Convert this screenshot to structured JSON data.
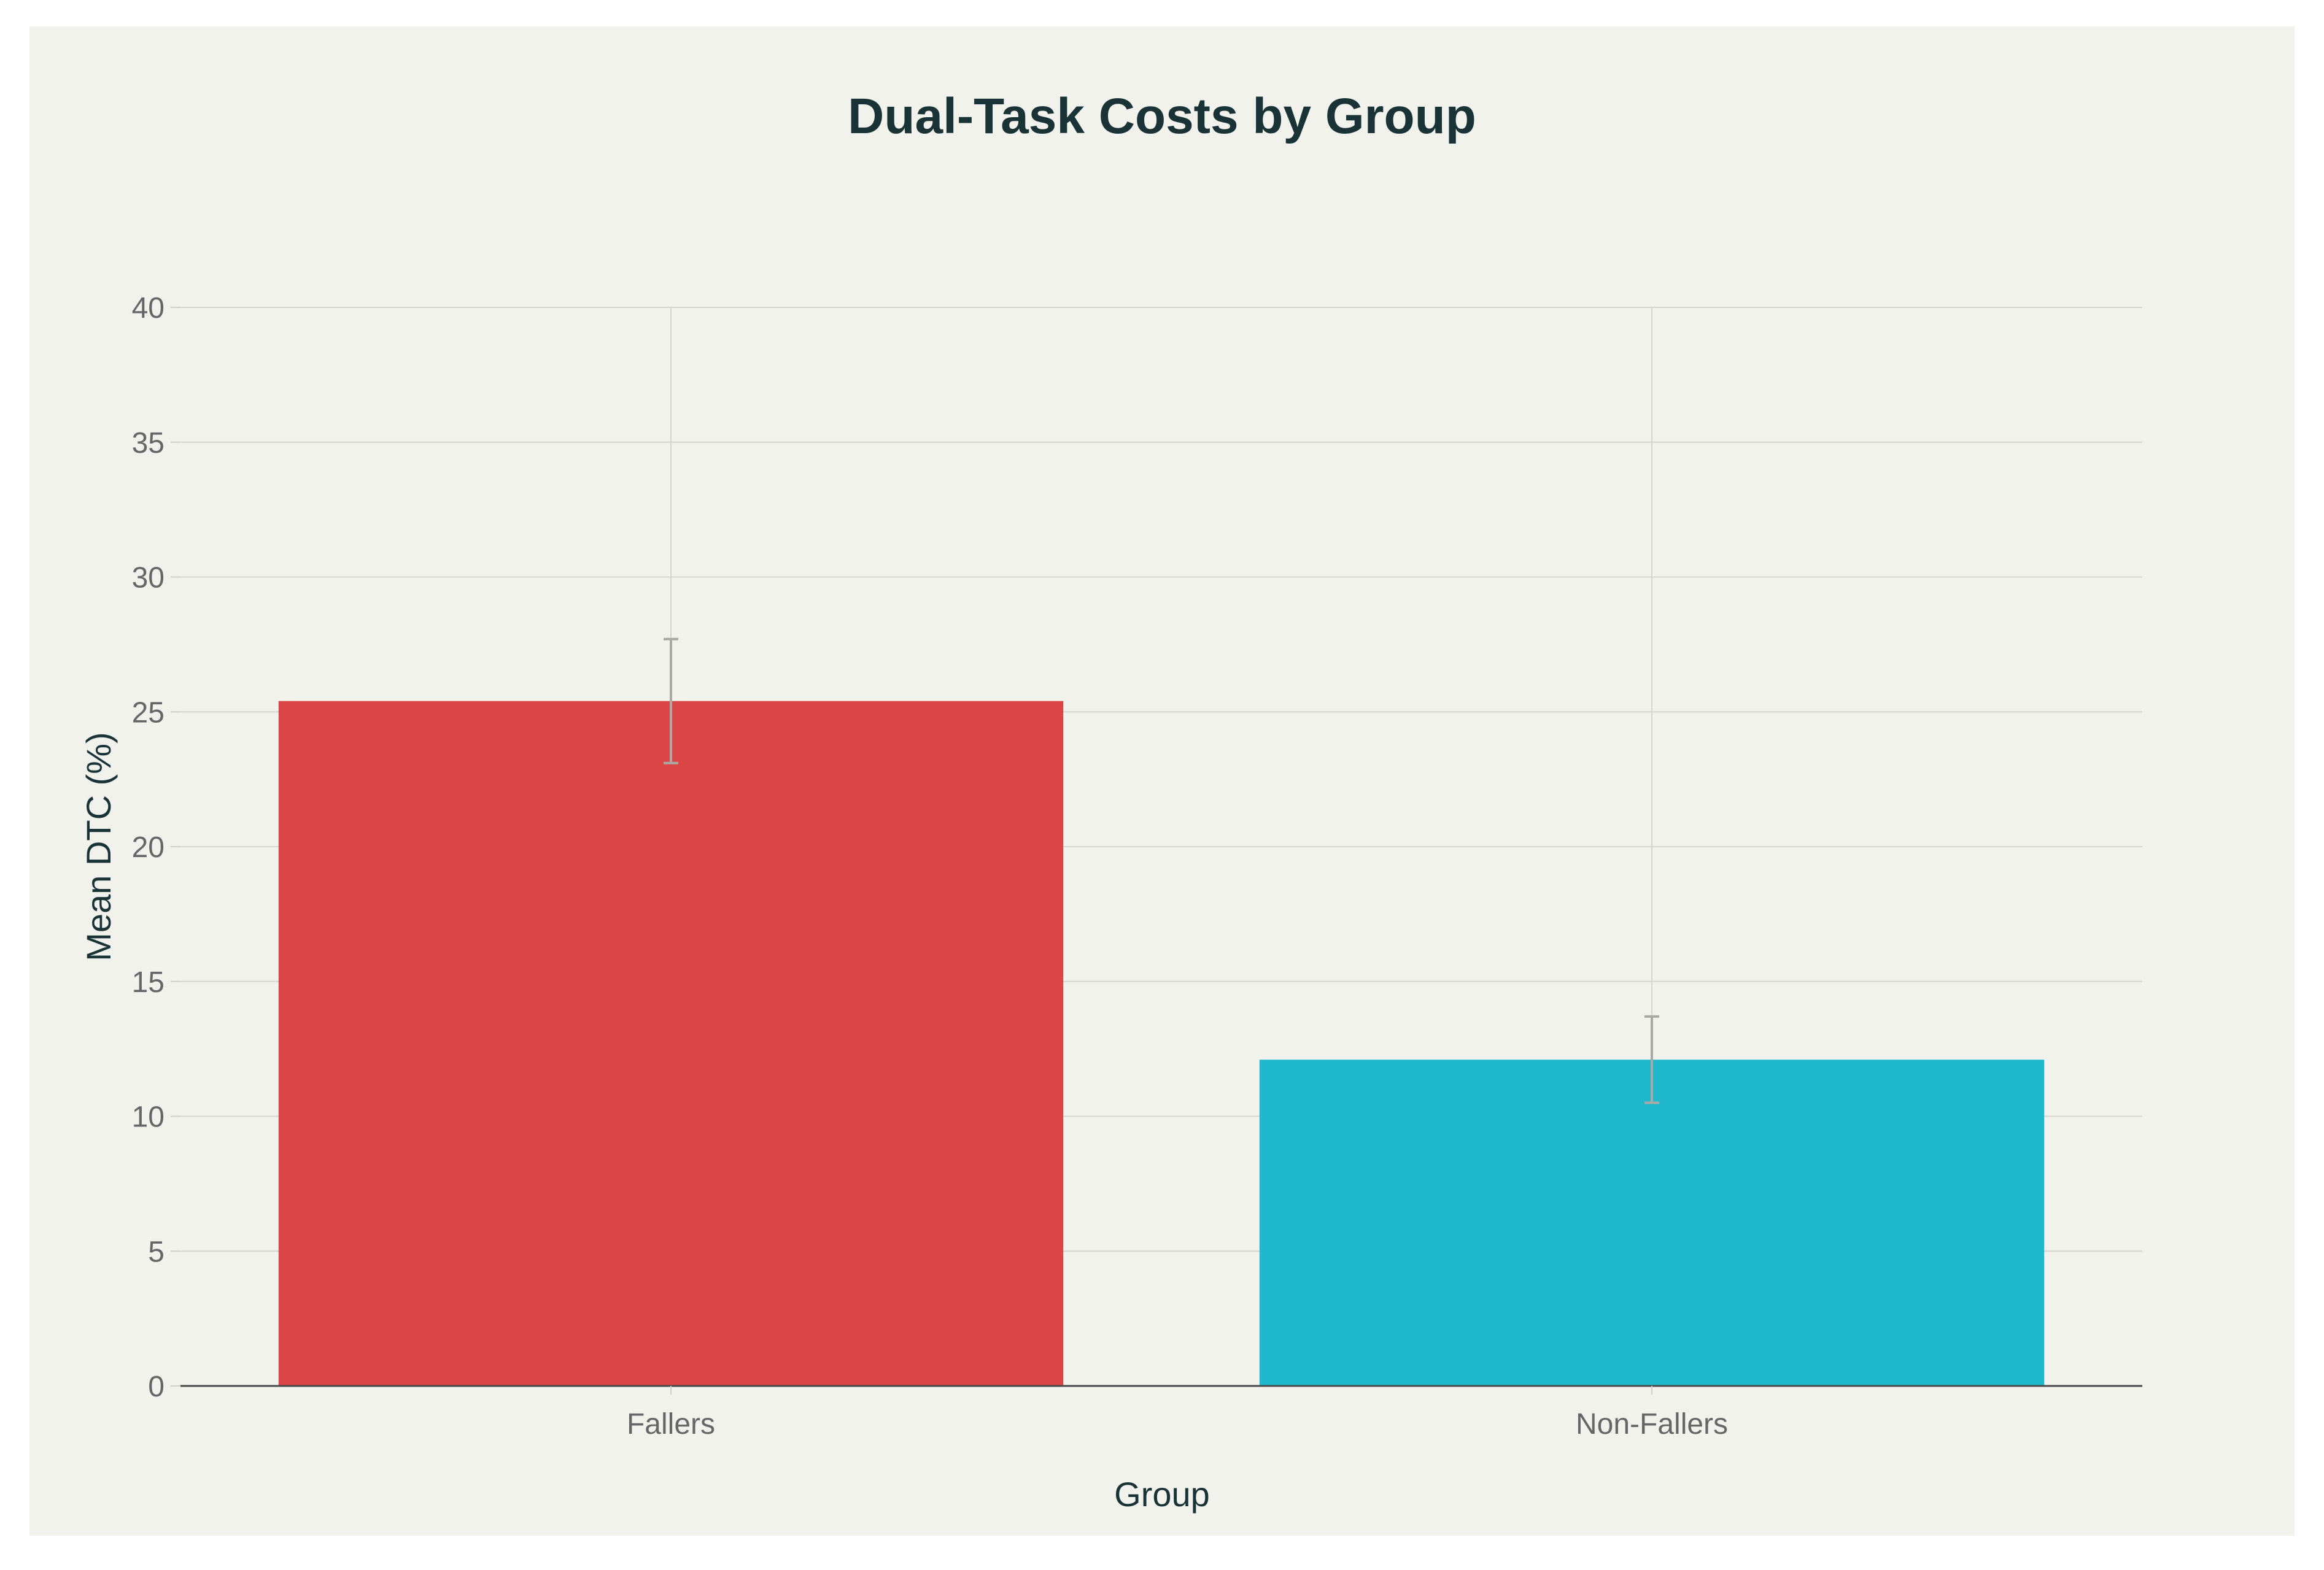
{
  "chart_data": {
    "type": "bar",
    "title": "Dual-Task Costs by Group",
    "xlabel": "Group",
    "ylabel": "Mean DTC (%)",
    "categories": [
      "Fallers",
      "Non-Fallers"
    ],
    "values": [
      25.4,
      12.1
    ],
    "error_bars": [
      {
        "low": 23.1,
        "high": 27.7
      },
      {
        "low": 10.5,
        "high": 13.7
      }
    ],
    "colors": [
      "#db4545",
      "#1fb8cd"
    ],
    "ylim": [
      0,
      40
    ],
    "yticks": [
      0,
      5,
      10,
      15,
      20,
      25,
      30,
      35,
      40
    ],
    "grid": true,
    "legend": "none"
  }
}
